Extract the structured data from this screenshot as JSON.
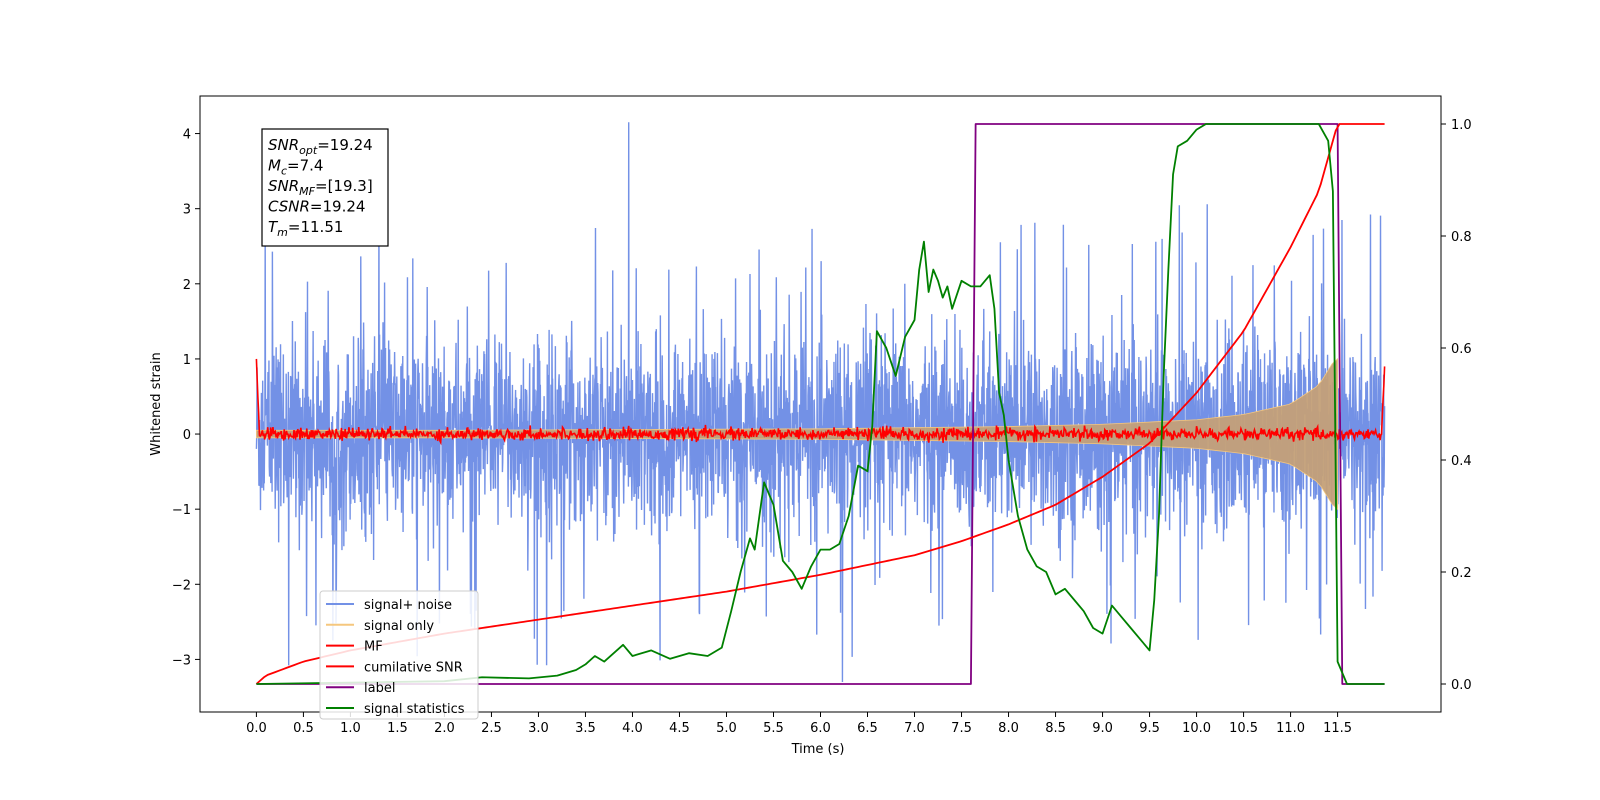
{
  "chart_data": {
    "type": "line",
    "xlabel": "Time (s)",
    "ylabel": "Whitened strain",
    "xlim": [
      -0.6,
      12.6
    ],
    "ylim": [
      -3.7,
      4.5
    ],
    "y2lim": [
      -0.05,
      1.05
    ],
    "xticks": [
      "0.0",
      "0.5",
      "1.0",
      "1.5",
      "2.0",
      "2.5",
      "3.0",
      "3.5",
      "4.0",
      "4.5",
      "5.0",
      "5.5",
      "6.0",
      "6.5",
      "7.0",
      "7.5",
      "8.0",
      "8.5",
      "9.0",
      "9.5",
      "10.0",
      "10.5",
      "11.0",
      "11.5"
    ],
    "yticks": [
      "−3",
      "−2",
      "−1",
      "0",
      "1",
      "2",
      "3",
      "4"
    ],
    "y2ticks": [
      "0.0",
      "0.2",
      "0.4",
      "0.6",
      "0.8",
      "1.0"
    ],
    "annotation": {
      "lines": [
        {
          "sym": "SNR",
          "sub": "opt",
          "value": "=19.24"
        },
        {
          "sym": "M",
          "sub": "c",
          "value": "=7.4"
        },
        {
          "sym": "SNR",
          "sub": "MF",
          "value": "=[19.3]"
        },
        {
          "sym": "CSNR",
          "sub": "",
          "value": "=19.24"
        },
        {
          "sym": "T",
          "sub": "m",
          "value": "=11.51"
        }
      ]
    },
    "series": [
      {
        "name": "signal+ noise",
        "color": "#7391e6",
        "axis": "left",
        "kind": "noise",
        "t_range": [
          0.0,
          12.0
        ],
        "std": 0.85,
        "max": 4.15,
        "min": -3.3
      },
      {
        "name": "signal only",
        "color": "#f5c77e",
        "axis": "left",
        "kind": "chirp",
        "t_range": [
          0.0,
          11.5
        ],
        "envelope": {
          "t": [
            0,
            2,
            4,
            6,
            8,
            9,
            10,
            10.5,
            11,
            11.3,
            11.45,
            11.5
          ],
          "amp": [
            0.05,
            0.05,
            0.06,
            0.07,
            0.1,
            0.13,
            0.19,
            0.26,
            0.4,
            0.65,
            0.95,
            1.0
          ]
        }
      },
      {
        "name": "MF",
        "color": "#ff0000",
        "axis": "left",
        "kind": "mf",
        "t_range": [
          0.0,
          12.0
        ],
        "start": 1.0,
        "end": 0.9,
        "std": 0.04
      },
      {
        "name": "cumilative SNR",
        "color": "#ff0000",
        "axis": "right",
        "x": [
          0,
          0.1,
          0.5,
          1,
          2,
          3,
          4,
          5,
          6,
          7,
          7.5,
          8,
          8.5,
          9,
          9.5,
          10,
          10.5,
          11,
          11.3,
          11.5,
          12.0
        ],
        "y": [
          0,
          0.015,
          0.04,
          0.06,
          0.09,
          0.115,
          0.14,
          0.165,
          0.195,
          0.23,
          0.255,
          0.285,
          0.32,
          0.37,
          0.43,
          0.52,
          0.63,
          0.78,
          0.88,
          1.0,
          1.0
        ]
      },
      {
        "name": "label",
        "color": "#800080",
        "axis": "right",
        "x": [
          0,
          7.6,
          7.65,
          11.5,
          11.55,
          12.0
        ],
        "y": [
          0,
          0,
          1,
          1,
          0,
          0
        ]
      },
      {
        "name": "signal statistics",
        "color": "#008000",
        "axis": "right",
        "x": [
          0,
          2.0,
          2.4,
          2.9,
          3.2,
          3.4,
          3.5,
          3.6,
          3.7,
          3.8,
          3.9,
          4.0,
          4.2,
          4.4,
          4.6,
          4.8,
          4.95,
          5.05,
          5.15,
          5.25,
          5.3,
          5.4,
          5.5,
          5.6,
          5.7,
          5.8,
          5.9,
          6.0,
          6.1,
          6.2,
          6.3,
          6.4,
          6.5,
          6.55,
          6.6,
          6.7,
          6.8,
          6.9,
          7.0,
          7.05,
          7.1,
          7.15,
          7.2,
          7.25,
          7.3,
          7.35,
          7.4,
          7.5,
          7.6,
          7.7,
          7.8,
          7.85,
          7.9,
          7.95,
          8.0,
          8.1,
          8.2,
          8.3,
          8.4,
          8.5,
          8.6,
          8.7,
          8.8,
          8.9,
          9.0,
          9.1,
          9.2,
          9.3,
          9.4,
          9.45,
          9.5,
          9.55,
          9.6,
          9.65,
          9.7,
          9.75,
          9.8,
          9.9,
          10.0,
          10.1,
          10.5,
          11.0,
          11.3,
          11.4,
          11.45,
          11.5,
          11.6,
          11.7,
          12.0
        ],
        "y": [
          0,
          0.005,
          0.012,
          0.01,
          0.015,
          0.025,
          0.035,
          0.05,
          0.04,
          0.055,
          0.07,
          0.05,
          0.06,
          0.045,
          0.055,
          0.05,
          0.065,
          0.13,
          0.2,
          0.26,
          0.24,
          0.36,
          0.32,
          0.22,
          0.2,
          0.17,
          0.21,
          0.24,
          0.24,
          0.25,
          0.3,
          0.39,
          0.38,
          0.46,
          0.63,
          0.6,
          0.55,
          0.62,
          0.65,
          0.74,
          0.79,
          0.7,
          0.74,
          0.72,
          0.69,
          0.71,
          0.67,
          0.72,
          0.71,
          0.71,
          0.73,
          0.67,
          0.52,
          0.48,
          0.4,
          0.3,
          0.24,
          0.21,
          0.2,
          0.16,
          0.17,
          0.15,
          0.13,
          0.1,
          0.09,
          0.14,
          0.12,
          0.1,
          0.08,
          0.07,
          0.06,
          0.15,
          0.3,
          0.55,
          0.74,
          0.91,
          0.96,
          0.97,
          0.99,
          1.0,
          1.0,
          1.0,
          1.0,
          0.97,
          0.88,
          0.04,
          0.0,
          0.0,
          0.0
        ]
      }
    ]
  }
}
